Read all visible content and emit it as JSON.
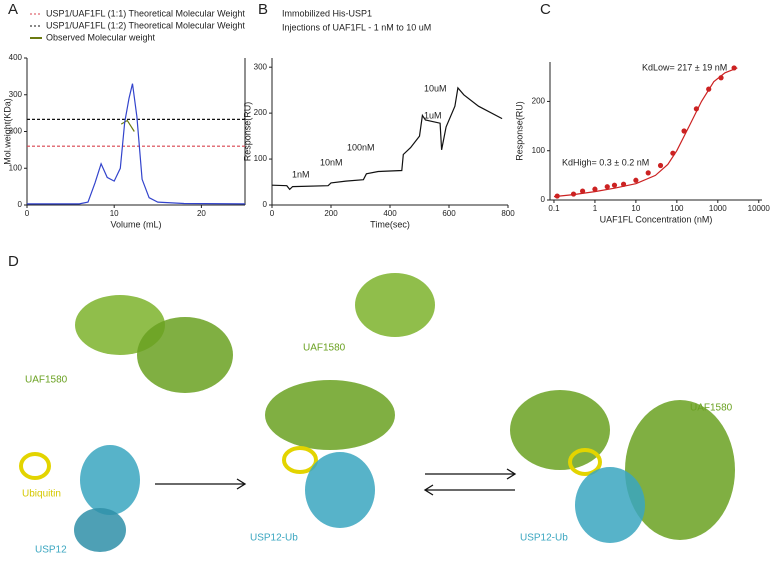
{
  "panels": [
    "A",
    "B",
    "C",
    "D"
  ],
  "chart_data": [
    {
      "type": "line",
      "xlabel": "Volume (mL)",
      "ylabel": "Mol.weight(KDa)",
      "xlim": [
        0,
        25
      ],
      "xticks": [
        0,
        10,
        20
      ],
      "ylim": [
        0,
        400
      ],
      "yticks": [
        0,
        100,
        200,
        300,
        400
      ],
      "legend": "top-left",
      "right_axis": true,
      "series": [
        {
          "name": "USP1/UAF1FL (1:1) Theoretical Molecular Weight",
          "color": "#d9434f",
          "dash": true,
          "x": [
            0,
            25
          ],
          "values": [
            160,
            160
          ]
        },
        {
          "name": "USP1/UAF1FL (1:2) Theoretical Molecular Weight",
          "color": "#111111",
          "dash": true,
          "x": [
            0,
            25
          ],
          "values": [
            233,
            233
          ]
        },
        {
          "name": "Observed Molecular weight",
          "color": "#6b7a10",
          "dash": false,
          "x": [
            10.8,
            11.5,
            12.3
          ],
          "values": [
            220,
            230,
            200
          ]
        },
        {
          "color": "#3344cc",
          "dash": false,
          "x": [
            0,
            6,
            7,
            7.8,
            8.5,
            9.2,
            10,
            10.7,
            11.2,
            11.7,
            12.1,
            12.6,
            13.2,
            14,
            15,
            18,
            25
          ],
          "values": [
            3,
            3,
            8,
            60,
            112,
            75,
            65,
            100,
            225,
            290,
            330,
            240,
            70,
            20,
            8,
            4,
            3
          ]
        }
      ]
    },
    {
      "type": "line",
      "title": "Immobilized His-USP1",
      "subtitle": "Injections of UAF1FL - 1 nM to 10 uM",
      "xlabel": "Time(sec)",
      "ylabel": "Response(RU)",
      "xlim": [
        0,
        800
      ],
      "xticks": [
        0,
        200,
        400,
        600,
        800
      ],
      "ylim": [
        0,
        320
      ],
      "yticks": [
        0,
        100,
        200,
        300
      ],
      "annotations": [
        "1nM",
        "10nM",
        "100nM",
        "1uM",
        "10uM"
      ],
      "series": [
        {
          "color": "#111111",
          "dash": false,
          "x": [
            0,
            50,
            60,
            70,
            190,
            200,
            250,
            310,
            320,
            360,
            440,
            445,
            470,
            500,
            510,
            520,
            570,
            575,
            590,
            620,
            630,
            650,
            700,
            780
          ],
          "values": [
            43,
            42,
            34,
            40,
            42,
            48,
            52,
            55,
            68,
            73,
            75,
            110,
            125,
            150,
            195,
            185,
            178,
            120,
            170,
            215,
            255,
            240,
            215,
            188
          ]
        }
      ]
    },
    {
      "type": "scatter",
      "xlabel": "UAF1FL Concentration (nM)",
      "ylabel": "Response(RU)",
      "xscale": "log",
      "xlim": [
        0.08,
        12000
      ],
      "xticks": [
        0.1,
        1,
        10,
        100,
        1000,
        10000
      ],
      "ylim": [
        0,
        280
      ],
      "yticks": [
        0,
        100,
        200
      ],
      "annotations": [
        "KdHigh= 0.3 ± 0.2 nM",
        "KdLow= 217 ± 19 nM"
      ],
      "series": [
        {
          "color": "#cc2222",
          "mode": "line",
          "x": [
            0.1,
            0.3,
            1,
            3,
            10,
            30,
            60,
            100,
            200,
            400,
            800,
            1500,
            3000
          ],
          "values": [
            7,
            11,
            17,
            24,
            33,
            50,
            72,
            100,
            150,
            200,
            240,
            258,
            268
          ]
        },
        {
          "color": "#cc2222",
          "mode": "markers",
          "x": [
            0.12,
            0.3,
            0.5,
            1,
            2,
            3,
            5,
            10,
            20,
            40,
            80,
            150,
            300,
            600,
            1200,
            2500
          ],
          "values": [
            8,
            12,
            18,
            22,
            27,
            30,
            32,
            40,
            55,
            70,
            95,
            140,
            185,
            225,
            248,
            268
          ]
        }
      ]
    }
  ],
  "diagram": {
    "labels": [
      "UAF1580",
      "Ubiquitin",
      "USP12",
      "UAF1580",
      "USP12-Ub",
      "UAF1580",
      "USP12-Ub"
    ]
  }
}
